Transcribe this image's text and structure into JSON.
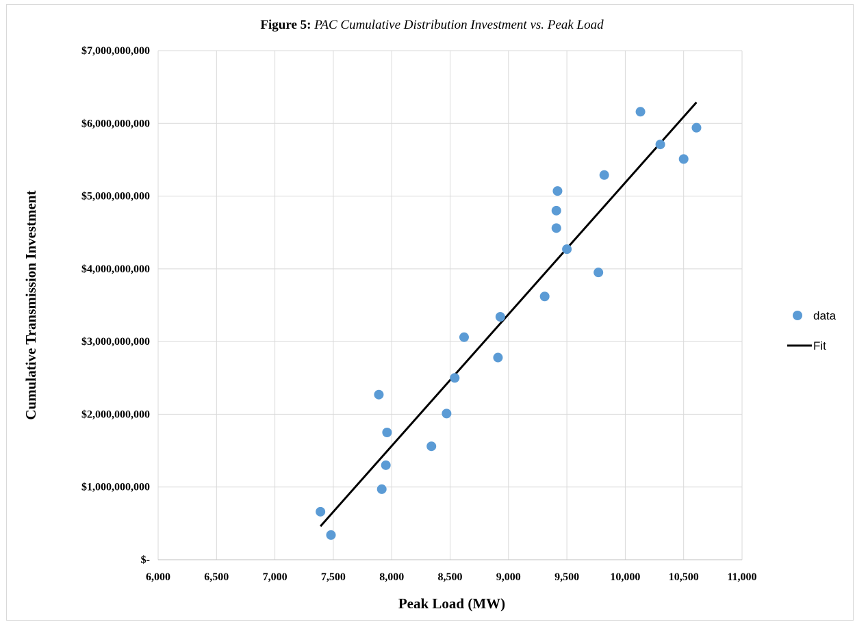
{
  "chart_data": {
    "type": "scatter",
    "title_bold": "Figure 5:",
    "title_italic": "PAC Cumulative Distribution Investment vs. Peak Load",
    "xlabel": "Peak Load (MW)",
    "ylabel": "Cumulative  Transmission  Investment",
    "xlim": [
      6000,
      11000
    ],
    "ylim": [
      0,
      7000000000
    ],
    "x_ticks": [
      6000,
      6500,
      7000,
      7500,
      8000,
      8500,
      9000,
      9500,
      10000,
      10500,
      11000
    ],
    "x_tick_labels": [
      "6,000",
      "6,500",
      "7,000",
      "7,500",
      "8,000",
      "8,500",
      "9,000",
      "9,500",
      "10,000",
      "10,500",
      "11,000"
    ],
    "y_ticks": [
      0,
      1000000000,
      2000000000,
      3000000000,
      4000000000,
      5000000000,
      6000000000,
      7000000000
    ],
    "y_tick_labels": [
      "$-",
      "$1,000,000,000",
      "$2,000,000,000",
      "$3,000,000,000",
      "$4,000,000,000",
      "$5,000,000,000",
      "$6,000,000,000",
      "$7,000,000,000"
    ],
    "grid": true,
    "legend_position": "right",
    "series": [
      {
        "name": "data",
        "type": "scatter",
        "color": "#5b9bd5",
        "points": [
          [
            7390,
            660000000
          ],
          [
            7480,
            340000000
          ],
          [
            7890,
            2270000000
          ],
          [
            7915,
            970000000
          ],
          [
            7950,
            1300000000
          ],
          [
            7960,
            1750000000
          ],
          [
            8340,
            1560000000
          ],
          [
            8470,
            2010000000
          ],
          [
            8540,
            2500000000
          ],
          [
            8620,
            3060000000
          ],
          [
            8910,
            2780000000
          ],
          [
            8930,
            3340000000
          ],
          [
            9310,
            3620000000
          ],
          [
            9410,
            4560000000
          ],
          [
            9410,
            4800000000
          ],
          [
            9420,
            5070000000
          ],
          [
            9500,
            4270000000
          ],
          [
            9770,
            3950000000
          ],
          [
            9820,
            5290000000
          ],
          [
            10130,
            6160000000
          ],
          [
            10300,
            5710000000
          ],
          [
            10500,
            5510000000
          ],
          [
            10610,
            5940000000
          ]
        ]
      },
      {
        "name": "Fit",
        "type": "line",
        "color": "#000000",
        "points": [
          [
            7390,
            460000000
          ],
          [
            10610,
            6290000000
          ]
        ]
      }
    ]
  }
}
